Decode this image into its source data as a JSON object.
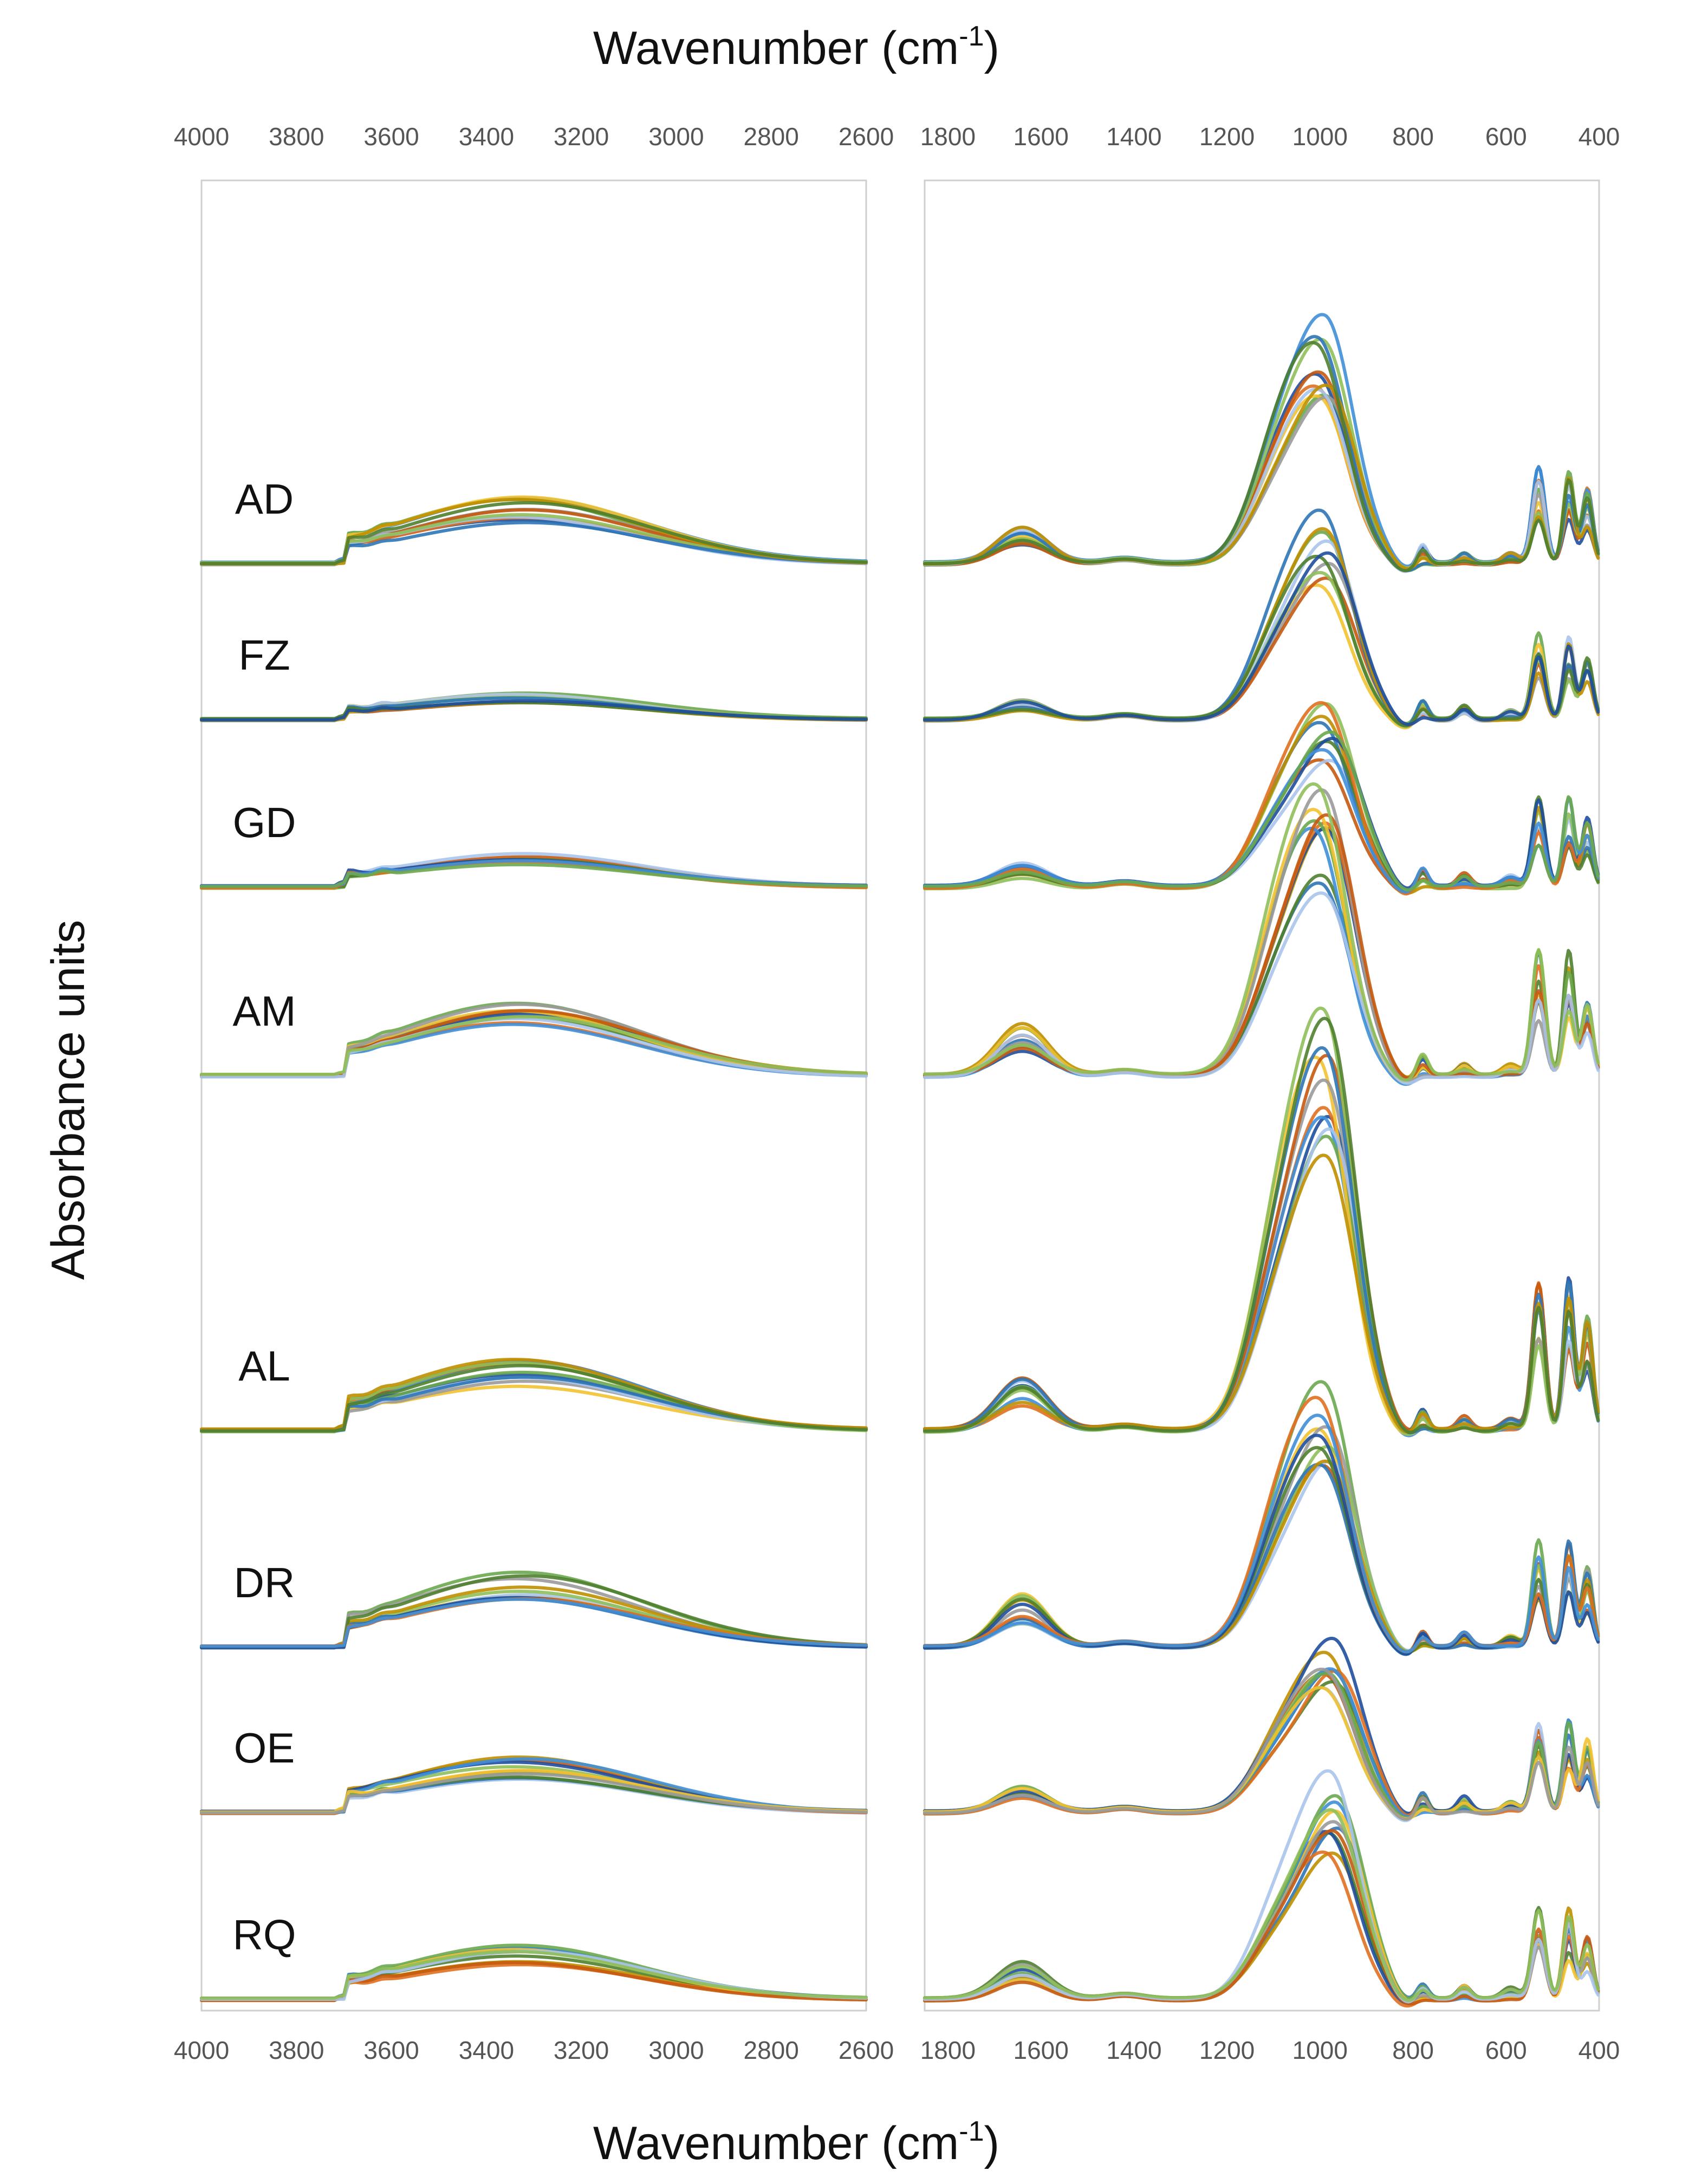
{
  "chart_data": {
    "type": "line",
    "title": "",
    "xlabel": "Wavenumber (cm-1)",
    "xlabel_top": "Wavenumber (cm",
    "xlabel_sup": "-1",
    "xlabel_close": ")",
    "ylabel": "Absorbance units",
    "panels": [
      {
        "name": "high-wavenumber",
        "xlim": [
          4000,
          2600
        ],
        "ticks": [
          "4000",
          "3800",
          "3600",
          "3400",
          "3200",
          "3000",
          "2800",
          "2600"
        ]
      },
      {
        "name": "low-wavenumber",
        "xlim": [
          1850,
          400
        ],
        "ticks": [
          "1800",
          "1600",
          "1400",
          "1200",
          "1000",
          "800",
          "600",
          "400"
        ]
      }
    ],
    "colors": [
      "#1f4e9c",
      "#e07020",
      "#3f8fd8",
      "#6aa84f",
      "#f2c230",
      "#9a9a9a",
      "#c55a11",
      "#a9c4eb",
      "#8fbf5a",
      "#2e75b6",
      "#bf8f00",
      "#4f7f2f"
    ],
    "groups": [
      {
        "label": "AD",
        "n_traces": 12,
        "oh_band_height": 0.7,
        "band_1640": 0.35,
        "band_1000": 2.75,
        "band_1000_center": 995,
        "fingerprint_500": 1.1
      },
      {
        "label": "FZ",
        "n_traces": 10,
        "oh_band_height": 0.28,
        "band_1640": 0.2,
        "band_1000": 2.4,
        "band_1000_center": 990,
        "fingerprint_500": 1.0
      },
      {
        "label": "GD",
        "n_traces": 10,
        "oh_band_height": 0.35,
        "band_1640": 0.22,
        "band_1000": 2.2,
        "band_1000_center": 985,
        "fingerprint_500": 1.0
      },
      {
        "label": "AM",
        "n_traces": 12,
        "oh_band_height": 0.8,
        "band_1640": 0.5,
        "band_1000": 3.2,
        "band_1000_center": 995,
        "fingerprint_500": 1.4
      },
      {
        "label": "AL",
        "n_traces": 12,
        "oh_band_height": 0.75,
        "band_1640": 0.5,
        "band_1000": 4.7,
        "band_1000_center": 990,
        "fingerprint_500": 1.7
      },
      {
        "label": "DR",
        "n_traces": 12,
        "oh_band_height": 0.8,
        "band_1640": 0.5,
        "band_1000": 3.0,
        "band_1000_center": 990,
        "fingerprint_500": 1.2
      },
      {
        "label": "OE",
        "n_traces": 12,
        "oh_band_height": 0.6,
        "band_1640": 0.25,
        "band_1000": 2.0,
        "band_1000_center": 980,
        "fingerprint_500": 1.1
      },
      {
        "label": "RQ",
        "n_traces": 12,
        "oh_band_height": 0.6,
        "band_1640": 0.35,
        "band_1000": 2.6,
        "band_1000_center": 975,
        "fingerprint_500": 1.0
      }
    ]
  }
}
